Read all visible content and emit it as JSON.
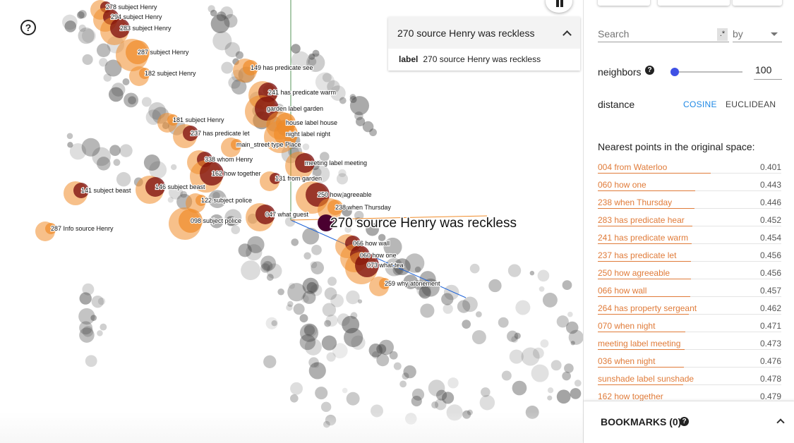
{
  "help_button": {
    "label": "?"
  },
  "selected_point": {
    "title": "270 source Henry was reckless",
    "field_key": "label",
    "field_value": "270 source Henry was reckless"
  },
  "search": {
    "placeholder": "Search",
    "regex_badge": ".*",
    "by_placeholder": "by"
  },
  "neighbors": {
    "label": "neighbors",
    "help": "?",
    "value": "100",
    "slider_fraction": 0.05
  },
  "distance": {
    "label": "distance",
    "options": [
      "COSINE",
      "EUCLIDEAN"
    ],
    "selected": "COSINE"
  },
  "nearest": {
    "title": "Nearest points in the original space:",
    "items": [
      {
        "label": "004 from Waterloo",
        "value": "0.401"
      },
      {
        "label": "060 how one",
        "value": "0.443"
      },
      {
        "label": "238 when Thursday",
        "value": "0.446"
      },
      {
        "label": "283 has predicate hear",
        "value": "0.452"
      },
      {
        "label": "241 has predicate warm",
        "value": "0.454"
      },
      {
        "label": "237 has predicate let",
        "value": "0.456"
      },
      {
        "label": "250 how agreeable",
        "value": "0.456"
      },
      {
        "label": "066 how wall",
        "value": "0.457"
      },
      {
        "label": "264 has property sergeant",
        "value": "0.462"
      },
      {
        "label": "070 when night",
        "value": "0.471"
      },
      {
        "label": "meeting label meeting",
        "value": "0.473"
      },
      {
        "label": "036 when night",
        "value": "0.476"
      },
      {
        "label": "sunshade label sunshade",
        "value": "0.478"
      },
      {
        "label": "162 how together",
        "value": "0.479"
      }
    ]
  },
  "bookmarks": {
    "title": "BOOKMARKS (0)",
    "help": "?"
  },
  "scatter": {
    "selected_label": "270 source Henry was reckless",
    "colors": {
      "gray": "#9e9e9e",
      "orange": "#f08c2a",
      "darkred": "#7a0a0a",
      "selected": "#4a0030",
      "axis_green": "#2e7d32",
      "axis_blue": "#1e63d8"
    },
    "labels": [
      "278 subject Henry",
      "294 subject Henry",
      "283 subject Henry",
      "287 subject Henry",
      "182 subject Henry",
      "149 has predicate see",
      "241 has predicate warm",
      "garden label garden",
      "181 subject Henry",
      "237 has predicate let",
      "house label house",
      "night label night",
      "main_street type Place",
      "338 whom Henry",
      "meeting label meeting",
      "162 how together",
      "131 from garden",
      "141 subject beast",
      "146 subject beast",
      "250 how agreeable",
      "122 subject police",
      "238 when Thursday",
      "047 what guest",
      "098 subject police",
      "287 Info source Henry",
      "066 how wall",
      "060 how one",
      "073 what tea",
      "259 why atonement"
    ]
  }
}
